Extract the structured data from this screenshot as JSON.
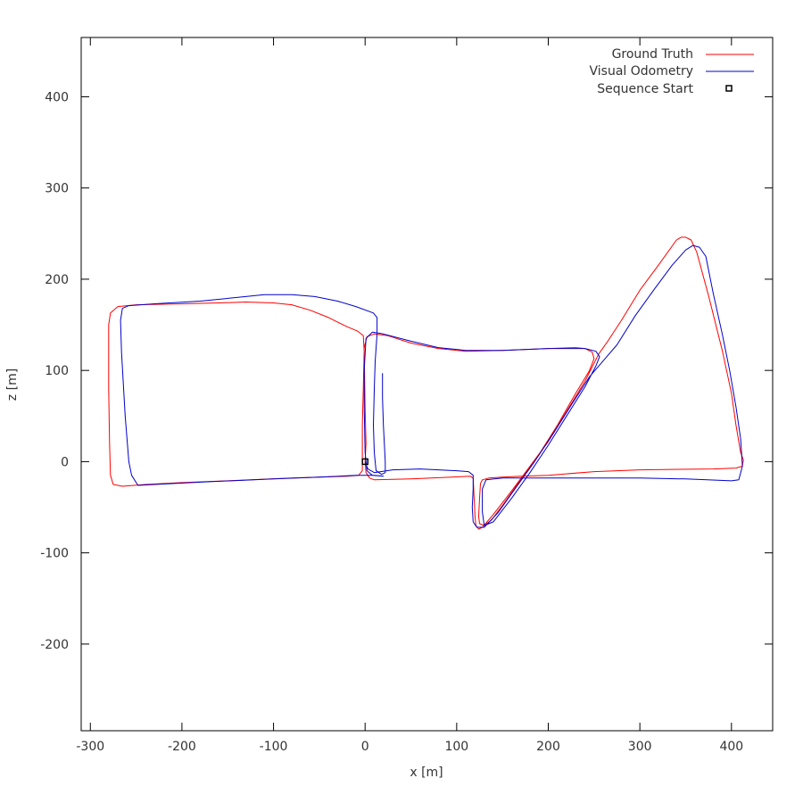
{
  "chart_data": {
    "type": "line",
    "title": "",
    "xlabel": "x [m]",
    "ylabel": "z [m]",
    "xlim": [
      -310,
      445
    ],
    "ylim": [
      -295,
      465
    ],
    "x_ticks": [
      -300,
      -200,
      -100,
      0,
      100,
      200,
      300,
      400
    ],
    "y_ticks": [
      -200,
      -100,
      0,
      100,
      200,
      300,
      400
    ],
    "grid": false,
    "legend_position": "top-right",
    "legend": [
      {
        "label": "Ground Truth",
        "kind": "line",
        "color": "#ff0000"
      },
      {
        "label": "Visual Odometry",
        "kind": "line",
        "color": "#0000cc"
      },
      {
        "label": "Sequence Start",
        "kind": "square",
        "color": "#000000"
      }
    ],
    "series": [
      {
        "name": "Ground Truth",
        "color": "#ff0000",
        "points": [
          [
            0,
            0
          ],
          [
            1,
            -12
          ],
          [
            5,
            -18
          ],
          [
            10,
            -20
          ],
          [
            50,
            -19
          ],
          [
            115,
            -16
          ],
          [
            118,
            -18
          ],
          [
            119,
            -40
          ],
          [
            120,
            -60
          ],
          [
            121,
            -70
          ],
          [
            124,
            -74
          ],
          [
            128,
            -72
          ],
          [
            140,
            -58
          ],
          [
            160,
            -32
          ],
          [
            180,
            -5
          ],
          [
            200,
            22
          ],
          [
            220,
            55
          ],
          [
            240,
            88
          ],
          [
            255,
            118
          ],
          [
            265,
            132
          ],
          [
            280,
            155
          ],
          [
            300,
            188
          ],
          [
            320,
            215
          ],
          [
            340,
            243
          ],
          [
            345,
            246
          ],
          [
            350,
            246
          ],
          [
            356,
            243
          ],
          [
            362,
            230
          ],
          [
            375,
            182
          ],
          [
            390,
            122
          ],
          [
            400,
            75
          ],
          [
            405,
            40
          ],
          [
            410,
            10
          ],
          [
            413,
            2
          ],
          [
            412,
            -5
          ],
          [
            405,
            -7
          ],
          [
            380,
            -8
          ],
          [
            300,
            -9
          ],
          [
            250,
            -11
          ],
          [
            200,
            -15
          ],
          [
            170,
            -16
          ],
          [
            150,
            -17
          ],
          [
            135,
            -18
          ],
          [
            128,
            -20
          ],
          [
            126,
            -24
          ],
          [
            125,
            -40
          ],
          [
            124,
            -60
          ],
          [
            125,
            -68
          ],
          [
            130,
            -70
          ],
          [
            138,
            -64
          ],
          [
            150,
            -48
          ],
          [
            170,
            -20
          ],
          [
            190,
            8
          ],
          [
            210,
            40
          ],
          [
            230,
            75
          ],
          [
            245,
            100
          ],
          [
            250,
            113
          ],
          [
            248,
            120
          ],
          [
            240,
            124
          ],
          [
            230,
            125
          ],
          [
            200,
            124
          ],
          [
            150,
            122
          ],
          [
            110,
            121
          ],
          [
            80,
            124
          ],
          [
            50,
            130
          ],
          [
            25,
            138
          ],
          [
            10,
            140
          ],
          [
            2,
            137
          ],
          [
            -1,
            125
          ],
          [
            -2,
            80
          ],
          [
            -3,
            40
          ],
          [
            -3,
            0
          ],
          [
            -3,
            -10
          ],
          [
            -7,
            -15
          ],
          [
            -20,
            -16
          ],
          [
            -80,
            -18
          ],
          [
            -150,
            -21
          ],
          [
            -200,
            -23
          ],
          [
            -240,
            -25
          ],
          [
            -265,
            -27
          ],
          [
            -275,
            -25
          ],
          [
            -278,
            -15
          ],
          [
            -279,
            20
          ],
          [
            -280,
            80
          ],
          [
            -280,
            120
          ],
          [
            -280,
            150
          ],
          [
            -278,
            163
          ],
          [
            -270,
            170
          ],
          [
            -250,
            172
          ],
          [
            -200,
            173
          ],
          [
            -160,
            174
          ],
          [
            -130,
            175
          ],
          [
            -100,
            174
          ],
          [
            -80,
            172
          ],
          [
            -60,
            166
          ],
          [
            -40,
            158
          ],
          [
            -20,
            148
          ],
          [
            -8,
            143
          ],
          [
            -2,
            138
          ],
          [
            -1,
            120
          ],
          [
            0,
            60
          ],
          [
            1,
            20
          ],
          [
            0,
            0
          ]
        ]
      },
      {
        "name": "Visual Odometry",
        "color": "#0000cc",
        "points": [
          [
            0,
            0
          ],
          [
            3,
            -8
          ],
          [
            10,
            -12
          ],
          [
            30,
            -9
          ],
          [
            60,
            -8
          ],
          [
            100,
            -10
          ],
          [
            113,
            -11
          ],
          [
            118,
            -15
          ],
          [
            118,
            -30
          ],
          [
            117,
            -50
          ],
          [
            118,
            -66
          ],
          [
            122,
            -72
          ],
          [
            130,
            -72
          ],
          [
            145,
            -56
          ],
          [
            165,
            -28
          ],
          [
            185,
            0
          ],
          [
            205,
            30
          ],
          [
            225,
            62
          ],
          [
            245,
            93
          ],
          [
            262,
            113
          ],
          [
            275,
            128
          ],
          [
            295,
            160
          ],
          [
            315,
            188
          ],
          [
            335,
            215
          ],
          [
            350,
            232
          ],
          [
            358,
            237
          ],
          [
            365,
            235
          ],
          [
            372,
            225
          ],
          [
            380,
            185
          ],
          [
            390,
            140
          ],
          [
            398,
            100
          ],
          [
            405,
            60
          ],
          [
            410,
            25
          ],
          [
            412,
            -5
          ],
          [
            408,
            -20
          ],
          [
            400,
            -21
          ],
          [
            350,
            -19
          ],
          [
            300,
            -18
          ],
          [
            200,
            -18
          ],
          [
            150,
            -18
          ],
          [
            132,
            -20
          ],
          [
            128,
            -30
          ],
          [
            128,
            -55
          ],
          [
            130,
            -70
          ],
          [
            140,
            -66
          ],
          [
            160,
            -40
          ],
          [
            180,
            -12
          ],
          [
            200,
            18
          ],
          [
            220,
            50
          ],
          [
            240,
            82
          ],
          [
            252,
            105
          ],
          [
            256,
            115
          ],
          [
            252,
            121
          ],
          [
            240,
            124
          ],
          [
            200,
            124
          ],
          [
            150,
            122
          ],
          [
            110,
            122
          ],
          [
            80,
            125
          ],
          [
            50,
            132
          ],
          [
            20,
            140
          ],
          [
            8,
            142
          ],
          [
            1,
            135
          ],
          [
            -1,
            100
          ],
          [
            -1,
            60
          ],
          [
            0,
            10
          ],
          [
            2,
            -10
          ],
          [
            8,
            -15
          ],
          [
            20,
            -16
          ],
          [
            10,
            -15
          ],
          [
            -10,
            -15
          ],
          [
            -50,
            -17
          ],
          [
            -100,
            -19
          ],
          [
            -170,
            -22
          ],
          [
            -230,
            -25
          ],
          [
            -248,
            -26
          ],
          [
            -255,
            -15
          ],
          [
            -258,
            0
          ],
          [
            -262,
            50
          ],
          [
            -266,
            120
          ],
          [
            -267,
            155
          ],
          [
            -265,
            168
          ],
          [
            -258,
            171
          ],
          [
            -230,
            173
          ],
          [
            -180,
            176
          ],
          [
            -140,
            180
          ],
          [
            -110,
            183
          ],
          [
            -80,
            183
          ],
          [
            -55,
            181
          ],
          [
            -30,
            176
          ],
          [
            -10,
            170
          ],
          [
            9,
            163
          ],
          [
            13,
            158
          ],
          [
            13,
            140
          ],
          [
            11,
            110
          ],
          [
            10,
            80
          ],
          [
            9,
            40
          ],
          [
            10,
            10
          ],
          [
            12,
            -10
          ],
          [
            18,
            -14
          ],
          [
            22,
            -12
          ],
          [
            22,
            0
          ],
          [
            20,
            40
          ],
          [
            19,
            70
          ],
          [
            19,
            97
          ]
        ]
      }
    ],
    "start_point": {
      "x": 0,
      "z": 0
    }
  }
}
